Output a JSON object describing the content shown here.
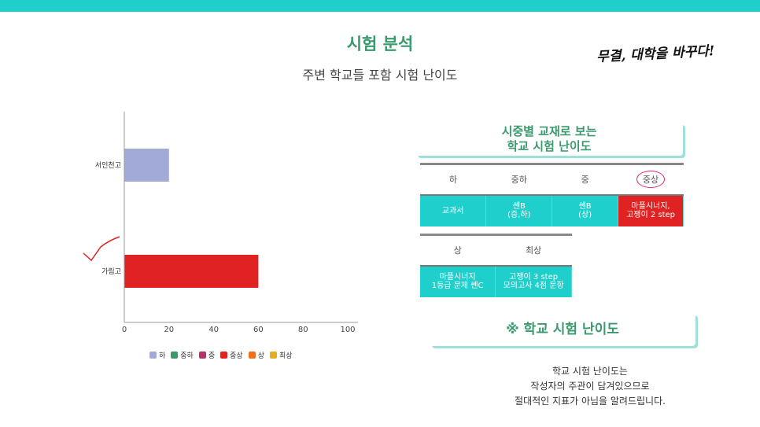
{
  "header": {
    "title": "시험 분석",
    "subtitle": "주변 학교들 포함 시험 난이도",
    "slogan": "무결, 대학을 바꾸다!"
  },
  "colors": {
    "top_bar": "#1ecfcb",
    "title": "#3a9a6e",
    "teal_cell": "#1ecfcb",
    "red_cell": "#e02222",
    "card_shadow": "#9fe0dc",
    "checkmark": "#e02222"
  },
  "chart_data": {
    "type": "bar",
    "orientation": "horizontal",
    "categories": [
      "서인천고",
      "가림고"
    ],
    "series": [
      {
        "name": "하",
        "color": "#a2aad8",
        "values": [
          20,
          null
        ]
      },
      {
        "name": "중하",
        "color": "#3a9a6e",
        "values": [
          null,
          null
        ]
      },
      {
        "name": "중",
        "color": "#b8306e",
        "values": [
          null,
          null
        ]
      },
      {
        "name": "중상",
        "color": "#e02222",
        "values": [
          null,
          60
        ]
      },
      {
        "name": "상",
        "color": "#f07020",
        "values": [
          null,
          null
        ]
      },
      {
        "name": "최상",
        "color": "#e0b020",
        "values": [
          null,
          null
        ]
      }
    ],
    "xlim": [
      0,
      100
    ],
    "x_ticks": [
      "0",
      "20",
      "40",
      "60",
      "80",
      "100"
    ],
    "legend_position": "bottom",
    "grid": false
  },
  "difficulty_table": {
    "card_title_line1": "시중별 교재로 보는",
    "card_title_line2": "학교 시험 난이도",
    "row1_headers": [
      "하",
      "중하",
      "중",
      "중상"
    ],
    "row1_cells": [
      "교과서",
      "쎈B\n(중,하)",
      "쎈B\n(상)",
      "마플시너지,\n고쟁이 2 step"
    ],
    "row2_headers": [
      "상",
      "최상"
    ],
    "row2_cells": [
      "마플시너지\n1등급 문제 쎈C",
      "고쟁이 3 step\n모의고사 4점 문항"
    ]
  },
  "section2": {
    "title": "※ 학교 시험 난이도"
  },
  "note": {
    "line1": "학교 시험 난이도는",
    "line2": "작성자의 주관이 담겨있으므로",
    "line3": "절대적인 지표가 아님을 알려드립니다."
  }
}
